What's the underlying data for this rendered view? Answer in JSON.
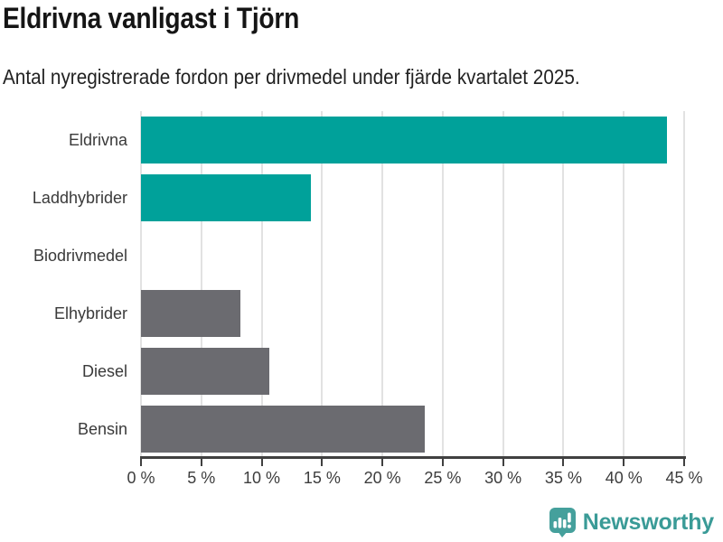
{
  "header": {
    "title": "Eldrivna vanligast i Tjörn",
    "subtitle": "Antal nyregistrerade fordon per drivmedel under fjärde kvartalet 2025."
  },
  "chart_data": {
    "type": "bar",
    "orientation": "horizontal",
    "title": "Eldrivna vanligast i Tjörn",
    "subtitle": "Antal nyregistrerade fordon per drivmedel under fjärde kvartalet 2025.",
    "categories": [
      "Eldrivna",
      "Laddhybrider",
      "Biodrivmedel",
      "Elhybrider",
      "Diesel",
      "Bensin"
    ],
    "values": [
      43.6,
      14.1,
      0,
      8.2,
      10.6,
      23.5
    ],
    "unit": "%",
    "bar_colors": [
      "#00A19A",
      "#00A19A",
      "#6B6B70",
      "#6B6B70",
      "#6B6B70",
      "#6B6B70"
    ],
    "xlabel": "",
    "ylabel": "",
    "xlim": [
      0,
      45
    ],
    "x_tick_values": [
      0,
      5,
      10,
      15,
      20,
      25,
      30,
      35,
      40,
      45
    ],
    "x_tick_labels": [
      "0 %",
      "5 %",
      "10 %",
      "15 %",
      "20 %",
      "25 %",
      "30 %",
      "35 %",
      "40 %",
      "45 %"
    ],
    "grid": "vertical-only",
    "legend": "none"
  },
  "colors": {
    "accent_teal": "#00A19A",
    "neutral_gray": "#6B6B70",
    "gridline": "#E2E2E2",
    "axis": "#404040",
    "label_text": "#3A3A3A",
    "title_text": "#151515"
  },
  "footer": {
    "brand": "Newsworthy",
    "brand_color": "#3A9B97",
    "logo_icon": "bar-chart-speech-bubble-icon"
  }
}
